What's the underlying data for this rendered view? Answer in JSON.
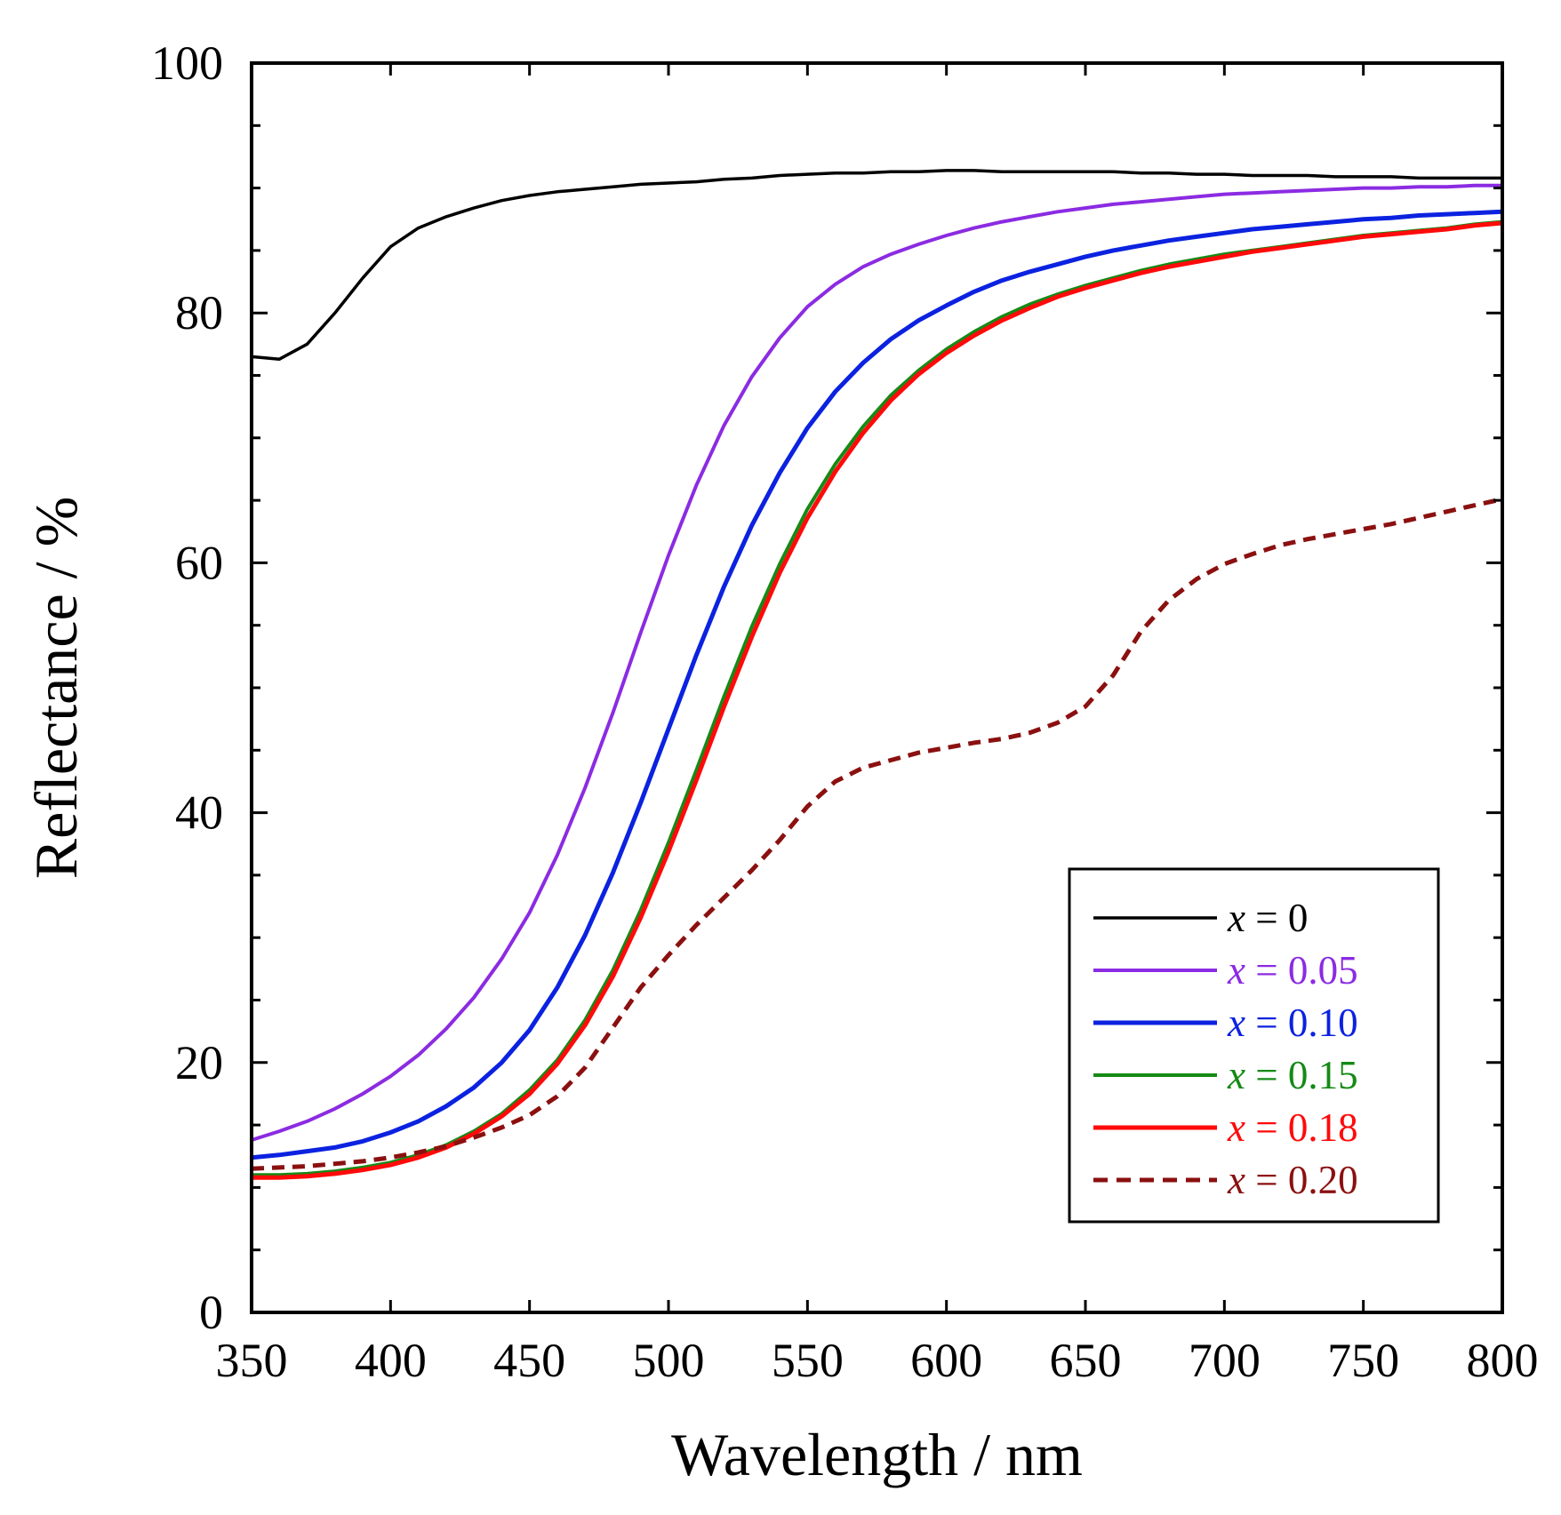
{
  "chart_data": {
    "type": "line",
    "title": "",
    "xlabel": "Wavelength / nm",
    "ylabel": "Reflectance / %",
    "xlim": [
      350,
      800
    ],
    "ylim": [
      0,
      100
    ],
    "xticks": [
      350,
      400,
      450,
      500,
      550,
      600,
      650,
      700,
      750,
      800
    ],
    "yticks": [
      0,
      20,
      40,
      60,
      80,
      100
    ],
    "yminor_step": 5,
    "grid": false,
    "legend_position": "bottom-right",
    "x": [
      350,
      360,
      370,
      380,
      390,
      400,
      410,
      420,
      430,
      440,
      450,
      460,
      470,
      480,
      490,
      500,
      510,
      520,
      530,
      540,
      550,
      560,
      570,
      580,
      590,
      600,
      610,
      620,
      630,
      640,
      650,
      660,
      670,
      680,
      690,
      700,
      710,
      720,
      730,
      740,
      750,
      760,
      770,
      780,
      790,
      800
    ],
    "series": [
      {
        "name": "x = 0",
        "var": "x",
        "value_text": " = 0",
        "color": "#000000",
        "dash": "solid",
        "width": 3.5,
        "values": [
          76.5,
          76.3,
          77.5,
          80.0,
          82.8,
          85.3,
          86.8,
          87.7,
          88.4,
          89.0,
          89.4,
          89.7,
          89.9,
          90.1,
          90.3,
          90.4,
          90.5,
          90.7,
          90.8,
          91.0,
          91.1,
          91.2,
          91.2,
          91.3,
          91.3,
          91.4,
          91.4,
          91.3,
          91.3,
          91.3,
          91.3,
          91.3,
          91.2,
          91.2,
          91.1,
          91.1,
          91.0,
          91.0,
          91.0,
          90.9,
          90.9,
          90.9,
          90.8,
          90.8,
          90.8,
          90.8
        ]
      },
      {
        "name": "x = 0.05",
        "var": "x",
        "value_text": " = 0.05",
        "color": "#8b2be2",
        "dash": "solid",
        "width": 4,
        "values": [
          13.8,
          14.5,
          15.3,
          16.3,
          17.5,
          18.9,
          20.6,
          22.7,
          25.2,
          28.3,
          32.0,
          36.6,
          42.0,
          48.0,
          54.4,
          60.6,
          66.2,
          71.0,
          74.9,
          78.0,
          80.5,
          82.3,
          83.7,
          84.7,
          85.5,
          86.2,
          86.8,
          87.3,
          87.7,
          88.1,
          88.4,
          88.7,
          88.9,
          89.1,
          89.3,
          89.5,
          89.6,
          89.7,
          89.8,
          89.9,
          90.0,
          90.0,
          90.1,
          90.1,
          90.2,
          90.2
        ]
      },
      {
        "name": "x = 0.10",
        "var": "x",
        "value_text": " = 0.10",
        "color": "#0b22e0",
        "dash": "solid",
        "width": 5,
        "values": [
          12.4,
          12.6,
          12.9,
          13.2,
          13.7,
          14.4,
          15.3,
          16.5,
          18.0,
          20.0,
          22.6,
          26.0,
          30.2,
          35.2,
          40.8,
          46.7,
          52.6,
          58.1,
          63.0,
          67.2,
          70.8,
          73.7,
          76.0,
          77.9,
          79.4,
          80.6,
          81.7,
          82.6,
          83.3,
          83.9,
          84.5,
          85.0,
          85.4,
          85.8,
          86.1,
          86.4,
          86.7,
          86.9,
          87.1,
          87.3,
          87.5,
          87.6,
          87.8,
          87.9,
          88.0,
          88.1
        ]
      },
      {
        "name": "x = 0.15",
        "var": "x",
        "value_text": " = 0.15",
        "color": "#158a15",
        "dash": "solid",
        "width": 4,
        "values": [
          11.0,
          11.0,
          11.1,
          11.3,
          11.6,
          12.0,
          12.6,
          13.4,
          14.5,
          15.9,
          17.8,
          20.2,
          23.4,
          27.4,
          32.2,
          37.6,
          43.4,
          49.3,
          54.9,
          59.9,
          64.3,
          67.9,
          70.9,
          73.4,
          75.4,
          77.1,
          78.5,
          79.7,
          80.7,
          81.5,
          82.2,
          82.8,
          83.4,
          83.9,
          84.3,
          84.7,
          85.0,
          85.3,
          85.6,
          85.9,
          86.2,
          86.4,
          86.6,
          86.8,
          87.1,
          87.3
        ]
      },
      {
        "name": "x = 0.18",
        "var": "x",
        "value_text": " = 0.18",
        "color": "#ff0a0a",
        "dash": "solid",
        "width": 5,
        "values": [
          10.8,
          10.8,
          10.9,
          11.1,
          11.4,
          11.8,
          12.4,
          13.2,
          14.3,
          15.7,
          17.5,
          19.9,
          23.0,
          26.9,
          31.6,
          36.9,
          42.6,
          48.5,
          54.1,
          59.2,
          63.6,
          67.3,
          70.4,
          73.0,
          75.1,
          76.8,
          78.2,
          79.4,
          80.4,
          81.3,
          82.0,
          82.6,
          83.2,
          83.7,
          84.1,
          84.5,
          84.9,
          85.2,
          85.5,
          85.8,
          86.1,
          86.3,
          86.5,
          86.7,
          87.0,
          87.2
        ]
      },
      {
        "name": "x = 0.20",
        "var": "x",
        "value_text": " = 0.20",
        "color": "#8b1010",
        "dash": "dashed",
        "width": 5,
        "values": [
          11.5,
          11.6,
          11.7,
          11.9,
          12.1,
          12.4,
          12.8,
          13.3,
          14.0,
          14.8,
          15.8,
          17.3,
          19.6,
          22.8,
          26.0,
          28.6,
          31.0,
          33.2,
          35.4,
          37.8,
          40.5,
          42.5,
          43.6,
          44.2,
          44.8,
          45.2,
          45.6,
          45.9,
          46.4,
          47.2,
          48.5,
          51.0,
          54.5,
          57.0,
          58.7,
          59.9,
          60.7,
          61.4,
          61.9,
          62.3,
          62.7,
          63.1,
          63.6,
          64.1,
          64.6,
          65.1
        ]
      }
    ]
  }
}
